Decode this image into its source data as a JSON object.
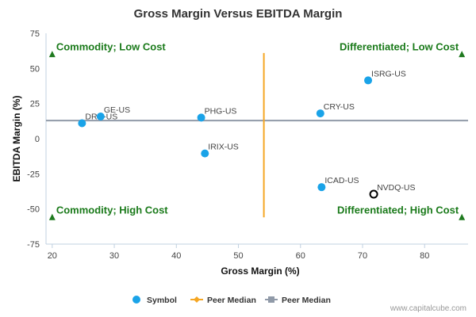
{
  "chart_data": {
    "type": "scatter",
    "title": "Gross Margin Versus EBITDA Margin",
    "xlabel": "Gross Margin (%)",
    "ylabel": "EBITDA Margin (%)",
    "xlim": [
      19,
      87
    ],
    "ylim": [
      -75,
      75
    ],
    "x_ticks": [
      20,
      30,
      40,
      50,
      60,
      70,
      80
    ],
    "y_ticks": [
      75,
      50,
      25,
      0,
      -25,
      -50,
      -75
    ],
    "grid": false,
    "points": [
      {
        "label": "DRD-US",
        "x": 24.8,
        "y": 11
      },
      {
        "label": "GE-US",
        "x": 27.8,
        "y": 15.8
      },
      {
        "label": "PHG-US",
        "x": 44.0,
        "y": 15
      },
      {
        "label": "IRIX-US",
        "x": 44.6,
        "y": -10.5
      },
      {
        "label": "CRY-US",
        "x": 63.2,
        "y": 18
      },
      {
        "label": "ISRG-US",
        "x": 70.9,
        "y": 41.5
      },
      {
        "label": "ICAD-US",
        "x": 63.4,
        "y": -34.5
      },
      {
        "label": "NVDQ-US",
        "x": 71.8,
        "y": -39.5,
        "highlight": true
      }
    ],
    "peer_median_x": 54.1,
    "peer_median_y": 12.9,
    "peer_median_x_yrange": [
      -56,
      61
    ],
    "quadrants": {
      "top_left": "Commodity; Low Cost",
      "top_right": "Differentiated; Low Cost",
      "bottom_left": "Commodity; High Cost",
      "bottom_right": "Differentiated; High Cost"
    },
    "marker_points": [
      {
        "x": 20,
        "y": 60
      },
      {
        "x": 86,
        "y": 60
      },
      {
        "x": 20,
        "y": -56
      },
      {
        "x": 86,
        "y": -56
      }
    ],
    "legend": [
      {
        "label": "Symbol",
        "kind": "circle",
        "color": "#1aa3e8"
      },
      {
        "label": "Peer Median",
        "kind": "line-diamond",
        "color": "#f5a623"
      },
      {
        "label": "Peer Median",
        "kind": "line-square",
        "color": "#909aa8"
      }
    ],
    "legend_position": "bottom",
    "colors": {
      "point": "#1aa3e8",
      "highlight_stroke": "#000000",
      "median_x": "#f5a623",
      "median_y": "#909aa8",
      "quad_text": "#1a7a1a",
      "marker": "#1f7a1f",
      "axis": "#c0d0e0"
    }
  },
  "credit": "www.capitalcube.com"
}
